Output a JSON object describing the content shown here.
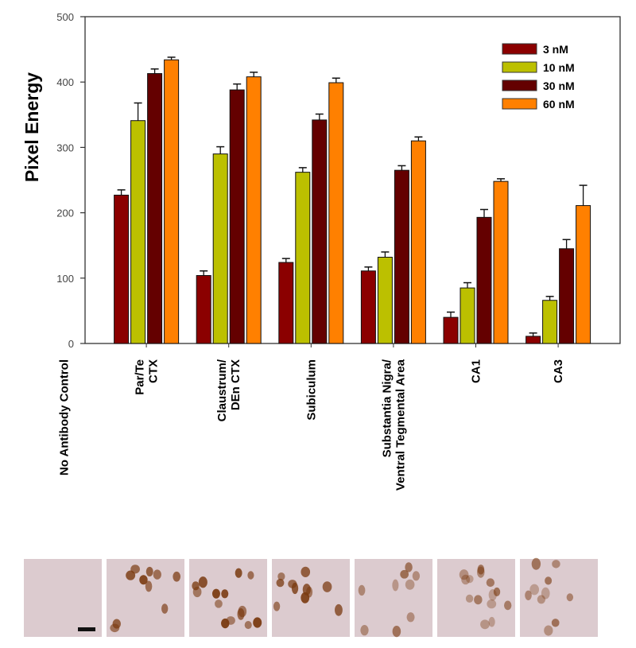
{
  "chart_data": {
    "type": "bar",
    "title": "",
    "xlabel": "",
    "ylabel": "Pixel Energy",
    "ylim": [
      0,
      500
    ],
    "yticks": [
      0,
      100,
      200,
      300,
      400,
      500
    ],
    "grid": false,
    "legend_placement": "top-right",
    "categories": [
      [
        "No Antibody Control"
      ],
      [
        "Par/Te",
        "CTX"
      ],
      [
        "Claustrum/",
        "DEn CTX"
      ],
      [
        "Subiculum"
      ],
      [
        "Substantia Nigra/",
        "Ventral Tegmental Area"
      ],
      [
        "CA1"
      ],
      [
        "CA3"
      ]
    ],
    "series": [
      {
        "name": "3 nM",
        "color": "#8b0000",
        "values": [
          null,
          227,
          104,
          124,
          111,
          40,
          11
        ],
        "errors": [
          null,
          8,
          7,
          6,
          6,
          8,
          5
        ]
      },
      {
        "name": "10 nM",
        "color": "#bcc000",
        "values": [
          null,
          341,
          290,
          262,
          132,
          85,
          66
        ],
        "errors": [
          null,
          27,
          11,
          7,
          8,
          8,
          6
        ]
      },
      {
        "name": "30 nM",
        "color": "#640000",
        "values": [
          null,
          413,
          388,
          342,
          265,
          193,
          145
        ],
        "errors": [
          null,
          7,
          9,
          9,
          7,
          12,
          14
        ]
      },
      {
        "name": "60 nM",
        "color": "#ff8000",
        "values": [
          null,
          434,
          408,
          399,
          310,
          248,
          211
        ],
        "errors": [
          null,
          4,
          7,
          7,
          6,
          4,
          31
        ]
      }
    ]
  },
  "micrographs": {
    "count": 7,
    "tissue_color": "#dccbcf",
    "stain_color": "#7a3a10",
    "scale_bar": true
  }
}
